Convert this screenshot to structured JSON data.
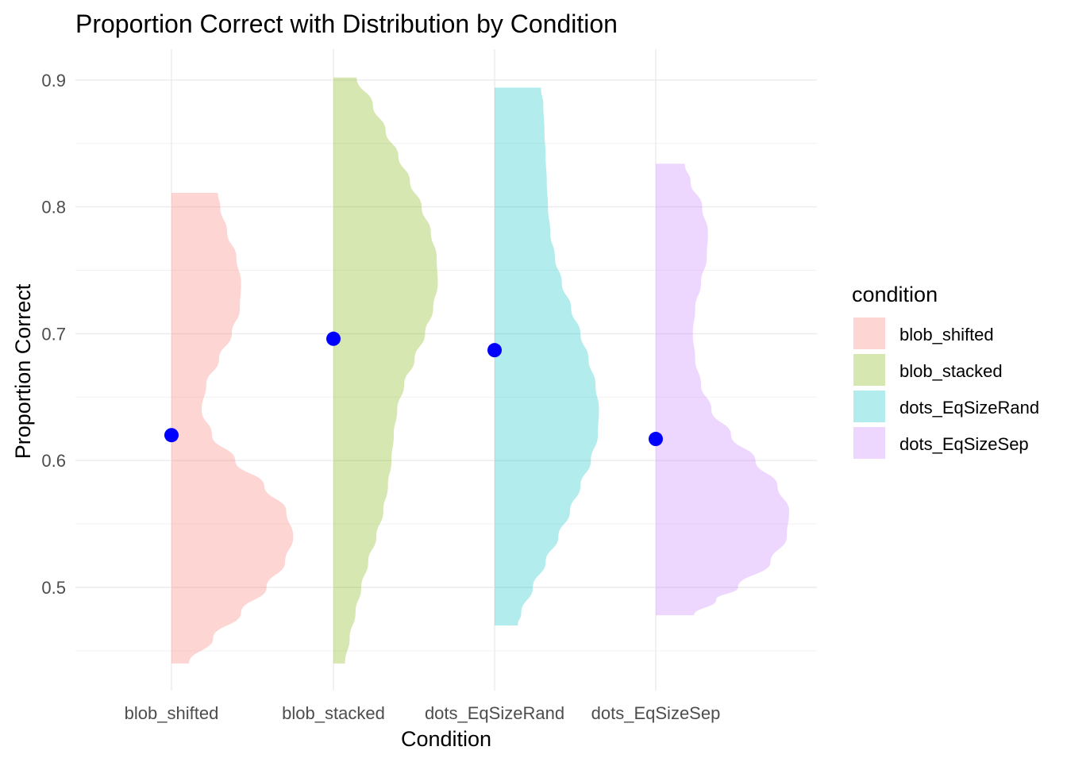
{
  "chart_data": {
    "type": "violin",
    "title": "Proportion Correct with Distribution by Condition",
    "xlabel": "Condition",
    "ylabel": "Proportion Correct",
    "ylim": [
      0.43,
      0.925
    ],
    "y_ticks": [
      "0.5",
      "0.6",
      "0.7",
      "0.8",
      "0.9"
    ],
    "y_tick_values": [
      0.5,
      0.6,
      0.7,
      0.8,
      0.9
    ],
    "y_minor_values": [
      0.45,
      0.55,
      0.65,
      0.75,
      0.85
    ],
    "grid": true,
    "legend_title": "condition",
    "legend_position": "right",
    "point_color": "#0000ff",
    "categories": [
      "blob_shifted",
      "blob_stacked",
      "dots_EqSizeRand",
      "dots_EqSizeSep"
    ],
    "series": [
      {
        "name": "blob_shifted",
        "color": "#f8766d",
        "mean": 0.62,
        "range": [
          0.44,
          0.811
        ],
        "density": [
          [
            0.44,
            0.15
          ],
          [
            0.46,
            0.36
          ],
          [
            0.48,
            0.6
          ],
          [
            0.5,
            0.82
          ],
          [
            0.52,
            0.98
          ],
          [
            0.54,
            1.05
          ],
          [
            0.56,
            0.99
          ],
          [
            0.58,
            0.8
          ],
          [
            0.6,
            0.55
          ],
          [
            0.62,
            0.35
          ],
          [
            0.64,
            0.26
          ],
          [
            0.66,
            0.3
          ],
          [
            0.68,
            0.41
          ],
          [
            0.7,
            0.52
          ],
          [
            0.72,
            0.59
          ],
          [
            0.74,
            0.6
          ],
          [
            0.76,
            0.56
          ],
          [
            0.78,
            0.48
          ],
          [
            0.8,
            0.42
          ],
          [
            0.811,
            0.4
          ]
        ]
      },
      {
        "name": "blob_stacked",
        "color": "#7cae00",
        "mean": 0.696,
        "range": [
          0.44,
          0.902
        ],
        "density": [
          [
            0.44,
            0.1
          ],
          [
            0.46,
            0.14
          ],
          [
            0.48,
            0.19
          ],
          [
            0.5,
            0.24
          ],
          [
            0.52,
            0.3
          ],
          [
            0.54,
            0.37
          ],
          [
            0.56,
            0.43
          ],
          [
            0.58,
            0.47
          ],
          [
            0.6,
            0.5
          ],
          [
            0.62,
            0.52
          ],
          [
            0.64,
            0.55
          ],
          [
            0.66,
            0.61
          ],
          [
            0.68,
            0.7
          ],
          [
            0.7,
            0.79
          ],
          [
            0.72,
            0.86
          ],
          [
            0.74,
            0.9
          ],
          [
            0.76,
            0.89
          ],
          [
            0.78,
            0.84
          ],
          [
            0.8,
            0.76
          ],
          [
            0.82,
            0.66
          ],
          [
            0.84,
            0.56
          ],
          [
            0.86,
            0.45
          ],
          [
            0.88,
            0.34
          ],
          [
            0.902,
            0.2
          ]
        ]
      },
      {
        "name": "dots_EqSizeRand",
        "color": "#00bfc4",
        "mean": 0.687,
        "range": [
          0.47,
          0.894
        ],
        "density": [
          [
            0.47,
            0.2
          ],
          [
            0.48,
            0.23
          ],
          [
            0.5,
            0.33
          ],
          [
            0.52,
            0.44
          ],
          [
            0.54,
            0.55
          ],
          [
            0.56,
            0.65
          ],
          [
            0.58,
            0.74
          ],
          [
            0.6,
            0.83
          ],
          [
            0.62,
            0.89
          ],
          [
            0.64,
            0.9
          ],
          [
            0.66,
            0.87
          ],
          [
            0.68,
            0.81
          ],
          [
            0.7,
            0.74
          ],
          [
            0.72,
            0.66
          ],
          [
            0.74,
            0.58
          ],
          [
            0.76,
            0.52
          ],
          [
            0.78,
            0.48
          ],
          [
            0.8,
            0.46
          ],
          [
            0.82,
            0.45
          ],
          [
            0.84,
            0.44
          ],
          [
            0.86,
            0.43
          ],
          [
            0.88,
            0.42
          ],
          [
            0.894,
            0.4
          ]
        ]
      },
      {
        "name": "dots_EqSizeSep",
        "color": "#c77cff",
        "mean": 0.617,
        "range": [
          0.478,
          0.834
        ],
        "density": [
          [
            0.478,
            0.33
          ],
          [
            0.49,
            0.52
          ],
          [
            0.5,
            0.71
          ],
          [
            0.52,
            0.99
          ],
          [
            0.54,
            1.13
          ],
          [
            0.56,
            1.15
          ],
          [
            0.58,
            1.05
          ],
          [
            0.6,
            0.86
          ],
          [
            0.62,
            0.65
          ],
          [
            0.64,
            0.48
          ],
          [
            0.66,
            0.39
          ],
          [
            0.68,
            0.34
          ],
          [
            0.7,
            0.32
          ],
          [
            0.72,
            0.34
          ],
          [
            0.74,
            0.39
          ],
          [
            0.76,
            0.44
          ],
          [
            0.78,
            0.45
          ],
          [
            0.8,
            0.4
          ],
          [
            0.82,
            0.3
          ],
          [
            0.834,
            0.25
          ]
        ]
      }
    ]
  }
}
